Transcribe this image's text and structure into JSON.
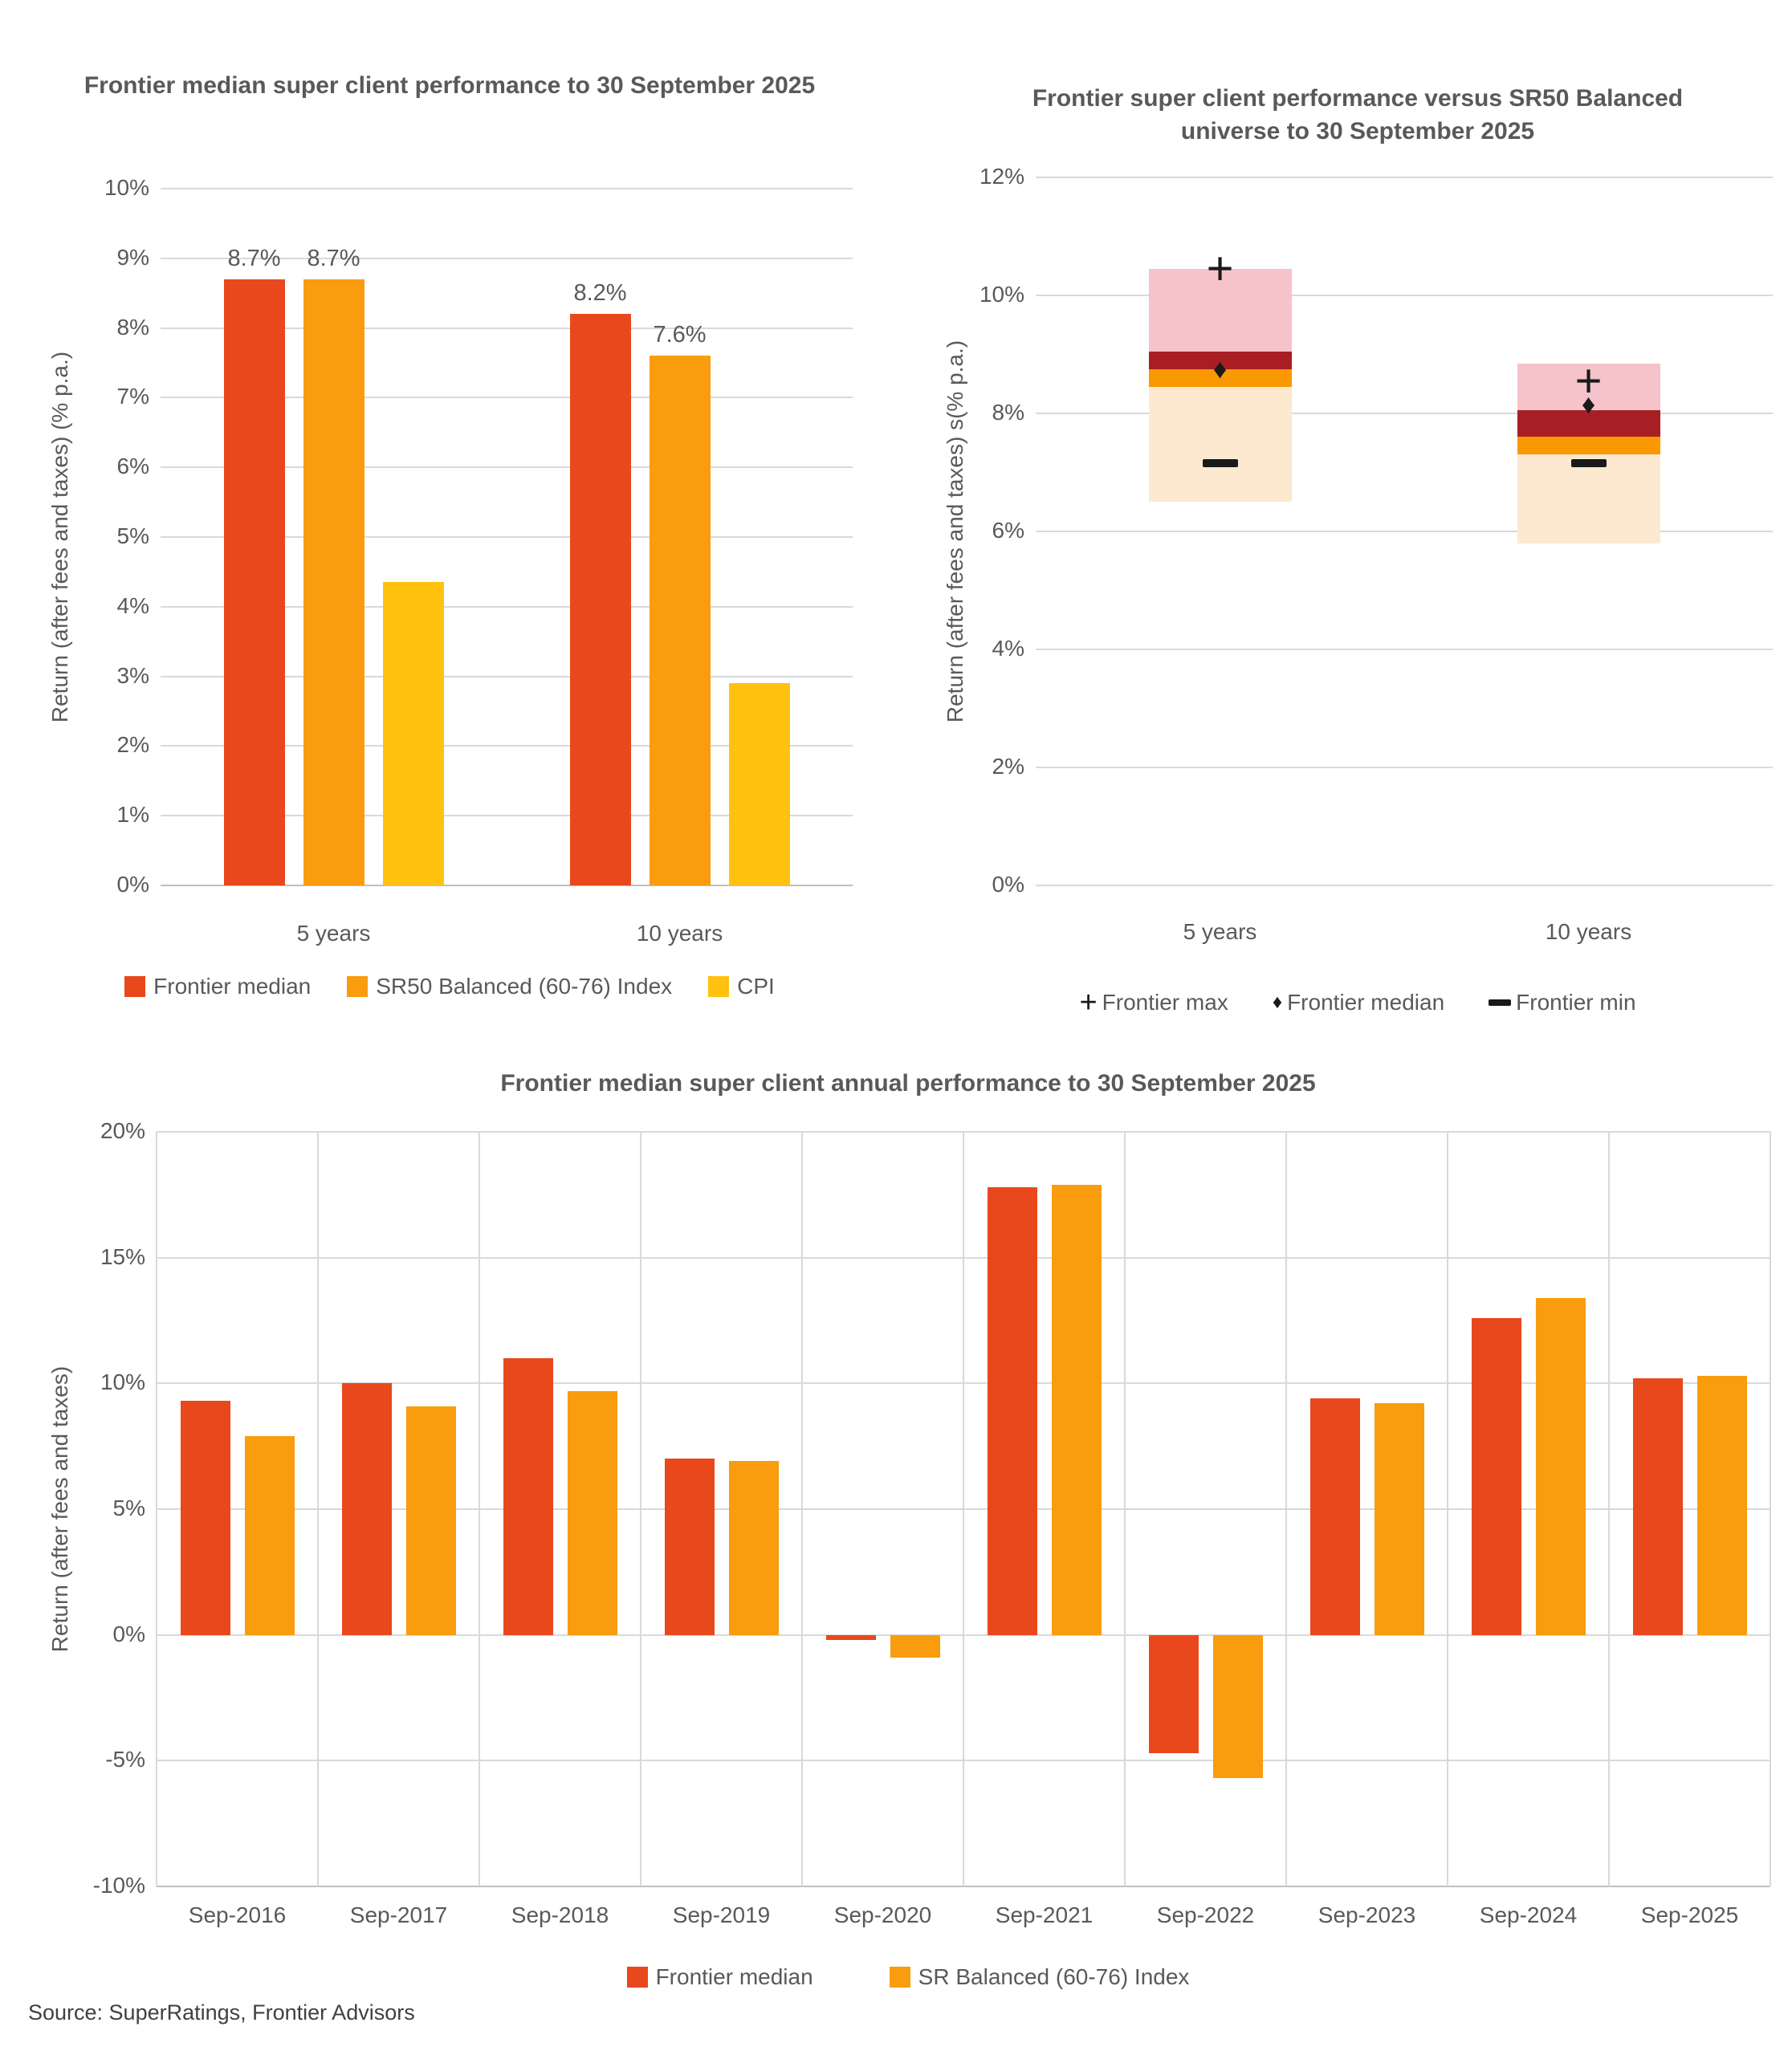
{
  "page": {
    "source_note": "Source: SuperRatings, Frontier Advisors"
  },
  "colors": {
    "frontier_red": "#E8481C",
    "sr_orange": "#F99C0D",
    "cpi_gold": "#FFC20E",
    "universe_pink": "#F6C3CB",
    "universe_dark_red": "#A91E25",
    "universe_orange": "#FA9800",
    "universe_cream": "#FCE9D0",
    "grid_gray": "#D9D9D9",
    "text_gray": "#595959"
  },
  "chart_data": [
    {
      "id": "median-performance",
      "type": "bar",
      "title": "Frontier median super client performance to 30 September 2025",
      "ylabel": "Return (after fees and taxes) (% p.a.)",
      "ylim": [
        0,
        10
      ],
      "ytick_step": 1,
      "grid": "horizontal",
      "legend_position": "bottom",
      "categories": [
        "5 years",
        "10 years"
      ],
      "series": [
        {
          "name": "Frontier median",
          "color": "#E8481C",
          "values": [
            8.7,
            8.2
          ],
          "labels": [
            "8.7%",
            "8.2%"
          ]
        },
        {
          "name": "SR50 Balanced (60-76) Index",
          "color": "#F99C0D",
          "values": [
            8.7,
            7.6
          ],
          "labels": [
            "8.7%",
            "7.6%"
          ]
        },
        {
          "name": "CPI",
          "color": "#FFC20E",
          "values": [
            4.35,
            2.9
          ],
          "labels": [
            null,
            null
          ]
        }
      ]
    },
    {
      "id": "universe-comparison",
      "type": "floating-stack",
      "title": "Frontier super client performance versus SR50 Balanced universe to 30 September 2025",
      "ylabel": "Return (after fees and taxes) s(% p.a.)",
      "ylim": [
        0,
        12
      ],
      "ytick_step": 2,
      "grid": "horizontal",
      "categories": [
        "5 years",
        "10 years"
      ],
      "bars": [
        {
          "category": "5 years",
          "bands": [
            {
              "name": "universe-lower-quartile-band",
              "color": "#FCE9D0",
              "from": 6.5,
              "to": 8.45
            },
            {
              "name": "universe-median-band",
              "color": "#FA9800",
              "from": 8.45,
              "to": 8.75
            },
            {
              "name": "universe-upper-band",
              "color": "#A91E25",
              "from": 8.75,
              "to": 9.05
            },
            {
              "name": "universe-top-quartile-band",
              "color": "#F6C3CB",
              "from": 9.05,
              "to": 10.45
            }
          ],
          "markers": {
            "max": 10.45,
            "median": 8.75,
            "min": 7.15
          }
        },
        {
          "category": "10 years",
          "bands": [
            {
              "name": "universe-lower-quartile-band",
              "color": "#FCE9D0",
              "from": 5.8,
              "to": 7.3
            },
            {
              "name": "universe-median-band",
              "color": "#FA9800",
              "from": 7.3,
              "to": 7.6
            },
            {
              "name": "universe-upper-band",
              "color": "#A91E25",
              "from": 7.6,
              "to": 8.05
            },
            {
              "name": "universe-top-quartile-band",
              "color": "#F6C3CB",
              "from": 8.05,
              "to": 8.85
            }
          ],
          "markers": {
            "max": 8.55,
            "median": 8.15,
            "min": 7.15
          }
        }
      ],
      "legend": [
        {
          "marker": "plus",
          "label": "Frontier max"
        },
        {
          "marker": "diamond",
          "label": "Frontier median"
        },
        {
          "marker": "dash",
          "label": "Frontier min"
        }
      ]
    },
    {
      "id": "annual-performance",
      "type": "bar",
      "title": "Frontier median super client annual performance to 30 September 2025",
      "ylabel": "Return (after fees and taxes)",
      "ylim": [
        -10,
        20
      ],
      "ytick_step": 5,
      "grid": "both",
      "legend_position": "bottom",
      "categories": [
        "Sep-2016",
        "Sep-2017",
        "Sep-2018",
        "Sep-2019",
        "Sep-2020",
        "Sep-2021",
        "Sep-2022",
        "Sep-2023",
        "Sep-2024",
        "Sep-2025"
      ],
      "series": [
        {
          "name": "Frontier median",
          "color": "#E8481C",
          "values": [
            9.3,
            10.0,
            11.0,
            7.0,
            -0.2,
            17.8,
            -4.7,
            9.4,
            12.6,
            10.2
          ]
        },
        {
          "name": "SR Balanced (60-76) Index",
          "color": "#F99C0D",
          "values": [
            7.9,
            9.1,
            9.7,
            6.9,
            -0.9,
            17.9,
            -5.7,
            9.2,
            13.4,
            10.3
          ]
        }
      ]
    }
  ]
}
